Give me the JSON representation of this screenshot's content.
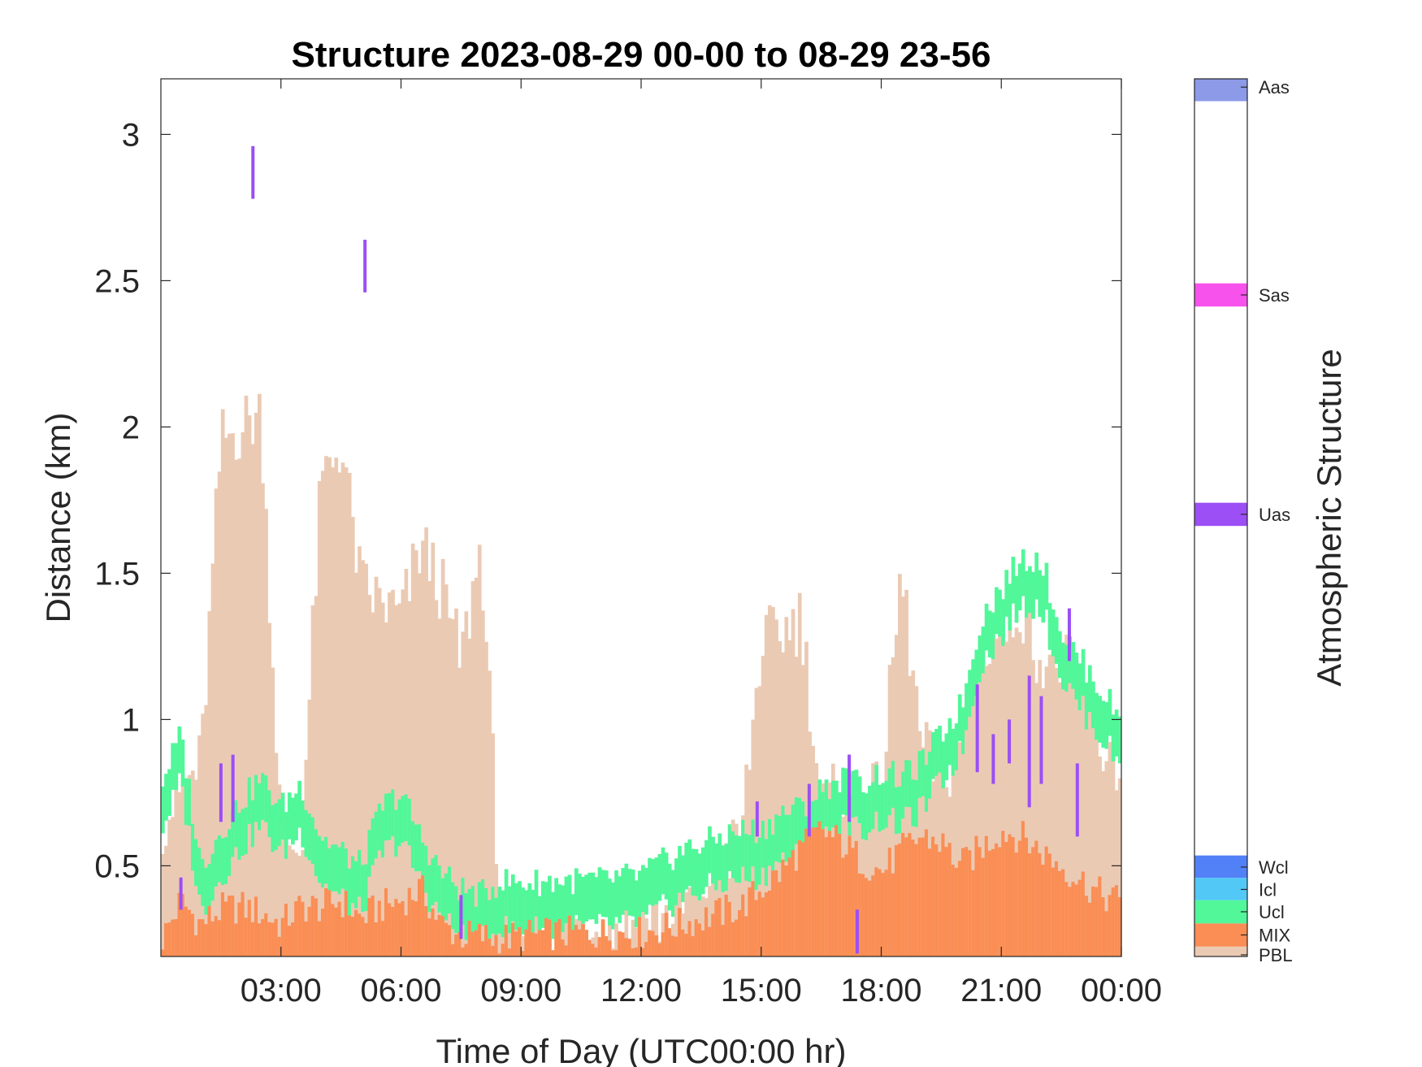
{
  "chart_data": {
    "type": "heatmap",
    "title": "Structure 2023-08-29 00-00 to 08-29 23-56",
    "xlabel": "Time of Day (UTC00:00 hr)",
    "ylabel": "Distance (km)",
    "x_unit": "hours",
    "xlim": [
      0,
      24
    ],
    "ylim": [
      0.19,
      3.19
    ],
    "x_ticks": [
      3,
      6,
      9,
      12,
      15,
      18,
      21,
      24
    ],
    "x_tick_labels": [
      "03:00",
      "06:00",
      "09:00",
      "12:00",
      "15:00",
      "18:00",
      "21:00",
      "00:00"
    ],
    "y_ticks": [
      0.5,
      1,
      1.5,
      2,
      2.5,
      3
    ],
    "y_tick_labels": [
      "0.5",
      "1",
      "1.5",
      "2",
      "2.5",
      "3"
    ],
    "colorbar": {
      "label": "Atmospheric Structure",
      "categories": [
        {
          "code": "PBL",
          "color": "#EBCAB4"
        },
        {
          "code": "MIX",
          "color": "#FA8E55"
        },
        {
          "code": "Ucl",
          "color": "#51F799"
        },
        {
          "code": "Icl",
          "color": "#52C8F7"
        },
        {
          "code": "Wcl",
          "color": "#5281F7"
        },
        {
          "code": "Uas",
          "color": "#9B4FF5"
        },
        {
          "code": "Sas",
          "color": "#F752EB"
        },
        {
          "code": "Aas",
          "color": "#8C9AE8"
        }
      ]
    },
    "series": [
      {
        "name": "PBL",
        "time_hr": [
          0,
          0.5,
          1,
          1.5,
          2,
          2.5,
          3,
          3.5,
          4,
          4.5,
          5,
          5.5,
          6,
          6.5,
          7,
          7.5,
          8,
          8.5,
          9,
          10,
          11,
          12,
          13,
          14,
          14.5,
          15,
          15.5,
          16,
          16.5,
          17,
          17.5,
          18,
          18.5,
          19,
          19.5,
          20,
          20.5,
          21,
          21.5,
          22,
          22.5,
          23,
          23.5,
          24
        ],
        "top_km": [
          0.65,
          0.75,
          0.85,
          1.95,
          2.0,
          2.05,
          0.6,
          0.55,
          1.8,
          1.95,
          1.45,
          1.4,
          1.35,
          1.6,
          1.45,
          1.2,
          1.6,
          0.3,
          0.3,
          0.3,
          0.3,
          0.3,
          0.35,
          0.5,
          0.6,
          1.25,
          1.3,
          1.35,
          0.7,
          0.75,
          0.7,
          0.75,
          1.5,
          0.9,
          0.8,
          0.9,
          1.25,
          1.3,
          1.4,
          1.2,
          1.2,
          1.1,
          0.9,
          0.85
        ]
      },
      {
        "name": "MIX",
        "time_hr": [
          0,
          0.5,
          1,
          1.5,
          2,
          2.5,
          3,
          3.5,
          4,
          4.5,
          5,
          5.5,
          6,
          6.5,
          7,
          7.5,
          8,
          8.5,
          9,
          10,
          11,
          12,
          13,
          14,
          14.5,
          15,
          15.5,
          16,
          16.5,
          17,
          17.5,
          18,
          18.5,
          19,
          19.5,
          20,
          20.5,
          21,
          21.5,
          22,
          22.5,
          23,
          23.5,
          24
        ],
        "top_km": [
          0.24,
          0.38,
          0.3,
          0.35,
          0.36,
          0.34,
          0.3,
          0.36,
          0.36,
          0.38,
          0.32,
          0.36,
          0.38,
          0.42,
          0.3,
          0.26,
          0.26,
          0.25,
          0.26,
          0.27,
          0.27,
          0.27,
          0.3,
          0.34,
          0.36,
          0.42,
          0.48,
          0.56,
          0.62,
          0.58,
          0.52,
          0.48,
          0.55,
          0.6,
          0.58,
          0.5,
          0.56,
          0.62,
          0.6,
          0.55,
          0.5,
          0.45,
          0.4,
          0.38
        ]
      },
      {
        "name": "Ucl",
        "time_hr": [
          0,
          0.5,
          1,
          1.5,
          2,
          2.5,
          3,
          3.5,
          4,
          4.5,
          5,
          5.5,
          6,
          6.5,
          7,
          7.5,
          8,
          8.5,
          9,
          10,
          11,
          12,
          13,
          14,
          14.5,
          15,
          15.5,
          16,
          16.5,
          17,
          17.5,
          18,
          18.5,
          19,
          19.5,
          20,
          20.5,
          21,
          21.5,
          22,
          22.5,
          23,
          23.5,
          24
        ],
        "top_km": [
          0.78,
          0.95,
          0.5,
          0.62,
          0.72,
          0.8,
          0.7,
          0.78,
          0.6,
          0.55,
          0.5,
          0.7,
          0.75,
          0.6,
          0.48,
          0.42,
          0.4,
          0.45,
          0.44,
          0.45,
          0.45,
          0.47,
          0.55,
          0.6,
          0.62,
          0.62,
          0.68,
          0.7,
          0.76,
          0.8,
          0.78,
          0.82,
          0.8,
          0.85,
          0.95,
          1.05,
          1.35,
          1.45,
          1.55,
          1.55,
          1.3,
          1.2,
          1.1,
          1.0
        ]
      },
      {
        "name": "Uas",
        "time_hr": [
          2.3,
          5.1,
          1.5,
          1.8,
          0.5,
          7.5,
          14.9,
          16.2,
          17.2,
          17.4,
          20.4,
          20.8,
          21.2,
          21.7,
          22.0,
          22.7,
          22.9
        ],
        "bottom_km": [
          2.78,
          2.46,
          0.65,
          0.65,
          0.35,
          0.25,
          0.6,
          0.6,
          0.65,
          0.2,
          0.82,
          0.78,
          0.85,
          0.7,
          0.78,
          1.2,
          0.6
        ],
        "top_km": [
          2.96,
          2.64,
          0.85,
          0.88,
          0.46,
          0.4,
          0.72,
          0.78,
          0.88,
          0.35,
          1.12,
          0.95,
          1.0,
          1.15,
          1.08,
          1.38,
          0.85
        ]
      }
    ]
  }
}
